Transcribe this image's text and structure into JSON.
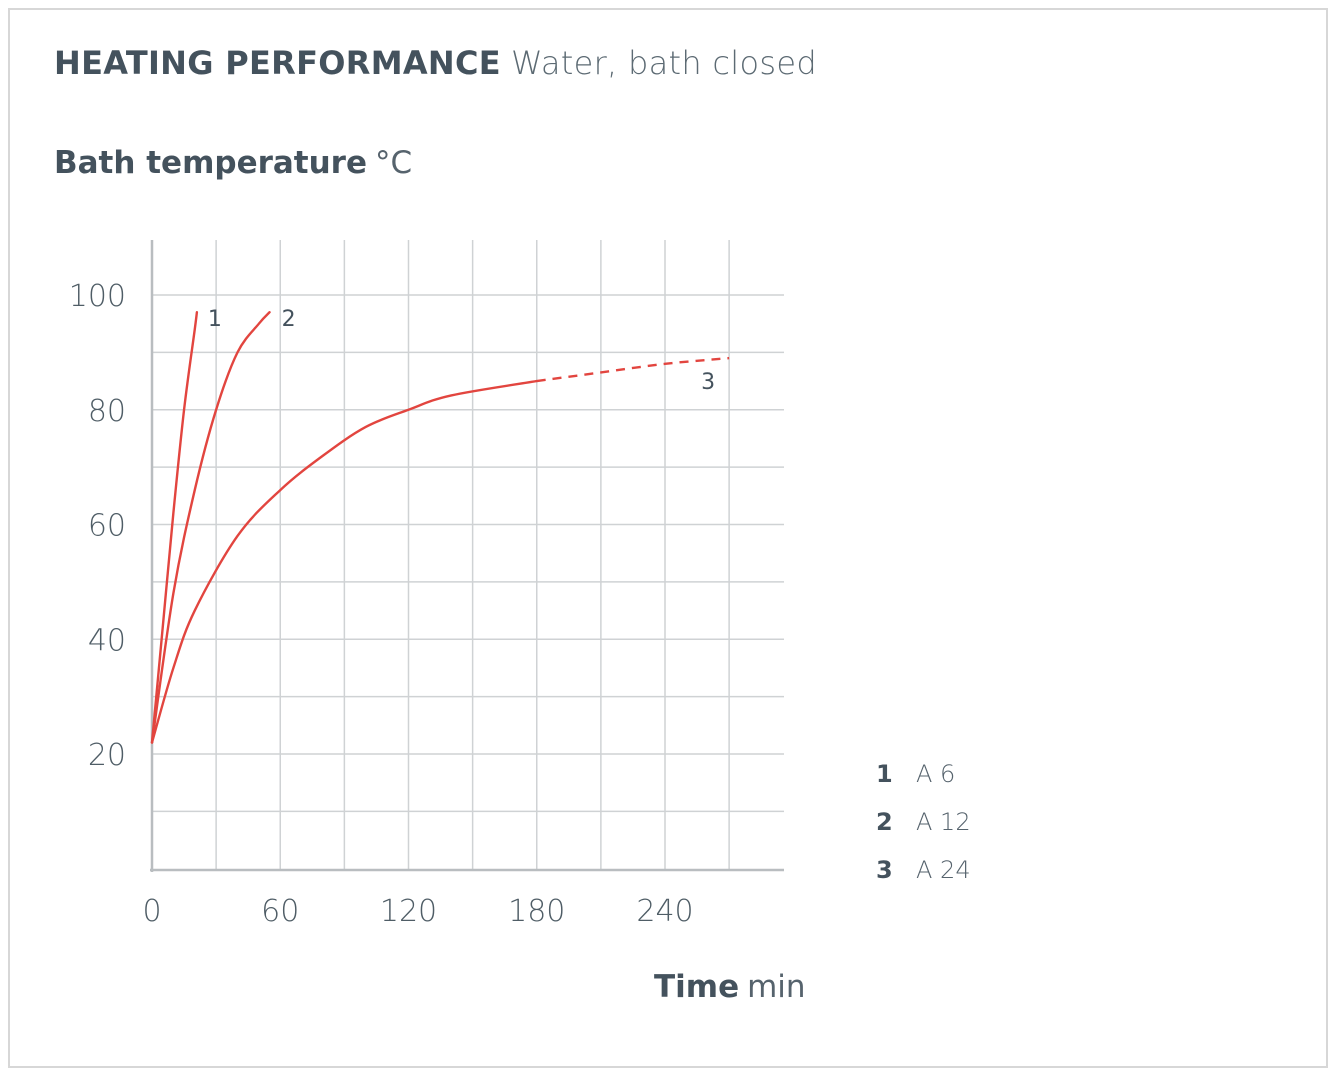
{
  "header": {
    "title_strong": "HEATING PERFORMANCE",
    "title_light": "Water, bath closed"
  },
  "axes": {
    "y_strong": "Bath temperature",
    "y_unit": "°C",
    "x_strong": "Time",
    "x_unit": "min"
  },
  "legend": [
    {
      "key": "1",
      "name": "A 6"
    },
    {
      "key": "2",
      "name": "A 12"
    },
    {
      "key": "3",
      "name": "A 24"
    }
  ],
  "chart_data": {
    "type": "line",
    "title": "HEATING PERFORMANCE Water, bath closed",
    "xlabel": "Time min",
    "ylabel": "Bath temperature °C",
    "xlim": [
      0,
      300
    ],
    "ylim": [
      0,
      110
    ],
    "xticks": [
      0,
      60,
      120,
      180,
      240
    ],
    "yticks": [
      20,
      40,
      60,
      80,
      100
    ],
    "grid": true,
    "series": [
      {
        "name": "1",
        "color": "#e2453f",
        "dashed_from_x": null,
        "points": [
          [
            0,
            22
          ],
          [
            5,
            42
          ],
          [
            10,
            62
          ],
          [
            15,
            80
          ],
          [
            20,
            94
          ],
          [
            21,
            97
          ]
        ]
      },
      {
        "name": "2",
        "color": "#e2453f",
        "dashed_from_x": null,
        "points": [
          [
            0,
            22
          ],
          [
            10,
            48
          ],
          [
            20,
            66
          ],
          [
            30,
            80
          ],
          [
            40,
            90
          ],
          [
            50,
            95
          ],
          [
            55,
            97
          ]
        ]
      },
      {
        "name": "3",
        "color": "#e2453f",
        "dashed_from_x": 180,
        "points": [
          [
            0,
            22
          ],
          [
            10,
            35
          ],
          [
            20,
            45
          ],
          [
            40,
            58
          ],
          [
            60,
            66
          ],
          [
            80,
            72
          ],
          [
            100,
            77
          ],
          [
            120,
            80
          ],
          [
            140,
            82.5
          ],
          [
            180,
            85
          ],
          [
            210,
            86.5
          ],
          [
            240,
            88
          ],
          [
            270,
            89
          ]
        ]
      }
    ]
  }
}
